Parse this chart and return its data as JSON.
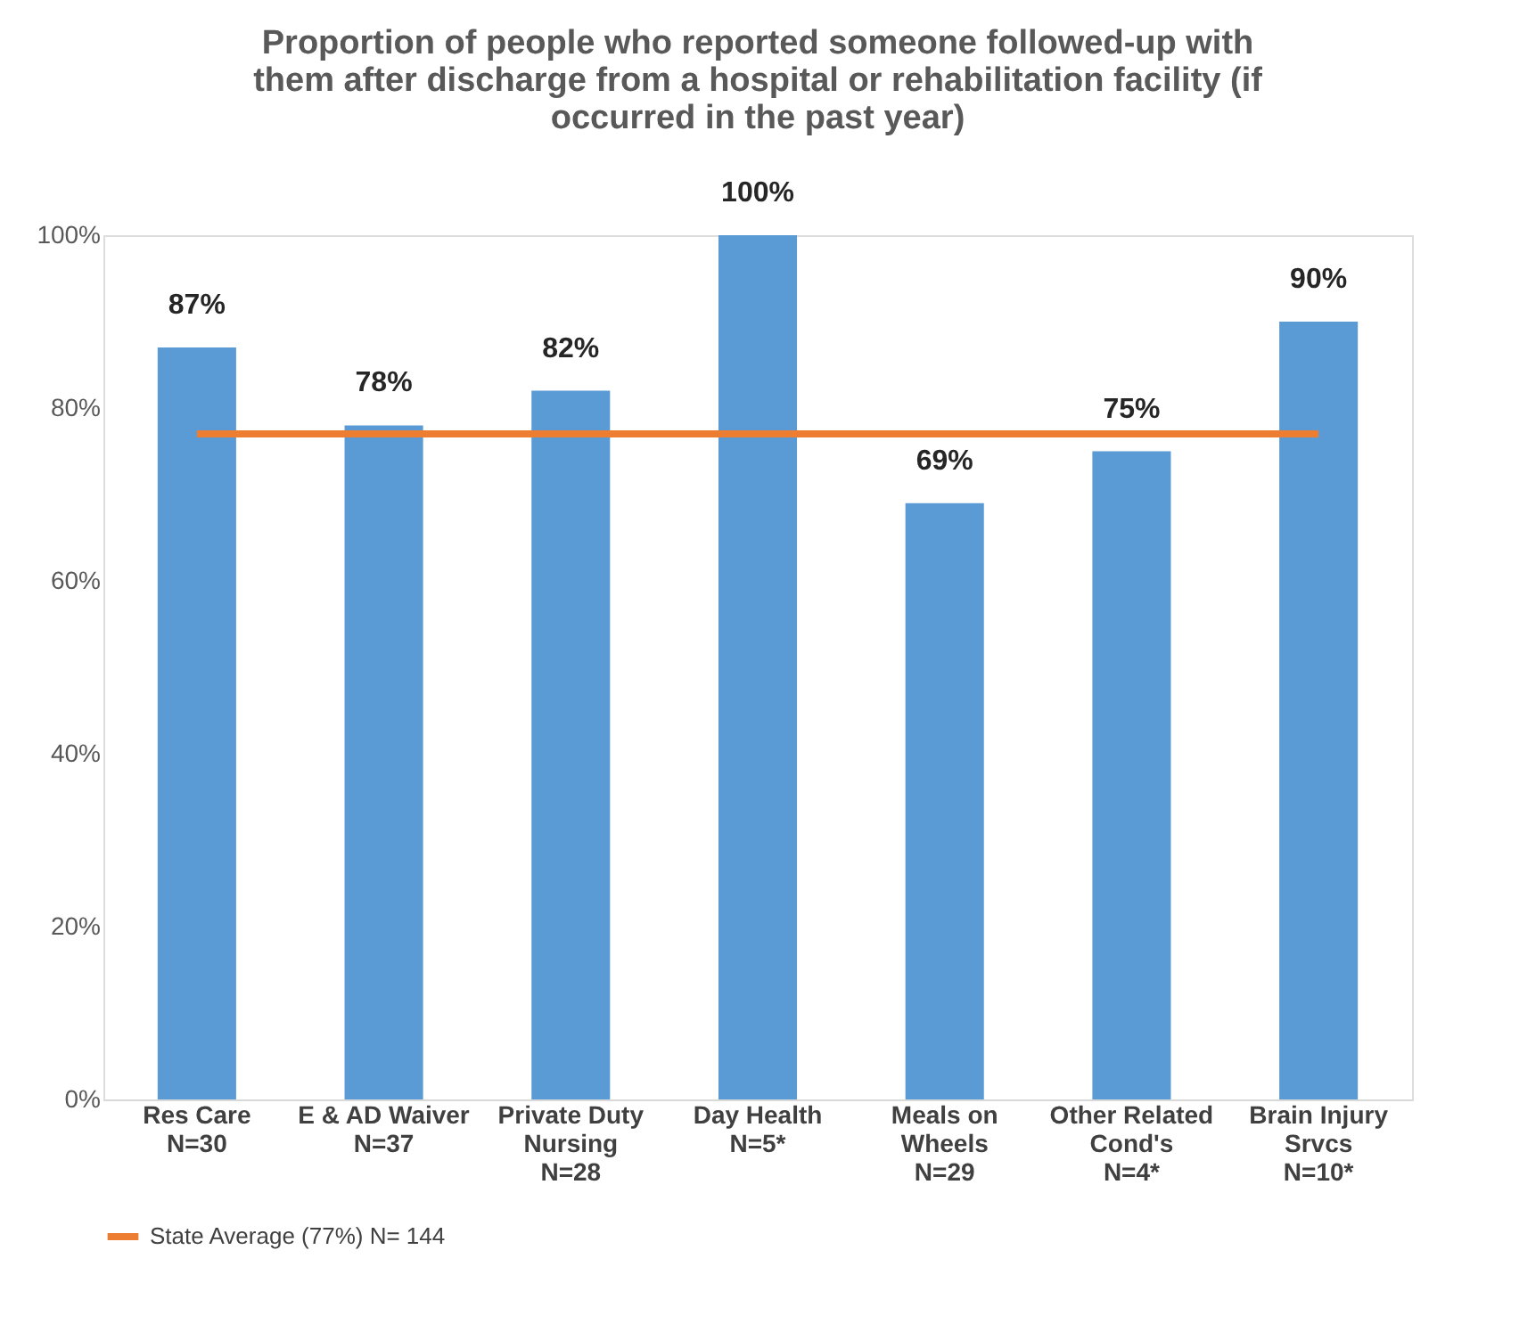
{
  "chart_data": {
    "type": "bar",
    "title": "Proportion of people who reported someone followed-up with\nthem after discharge from a hospital or rehabilitation facility (if\noccurred in the past year)",
    "categories": [
      "Res Care\nN=30",
      "E & AD Waiver\nN=37",
      "Private Duty\nNursing\nN=28",
      "Day Health\nN=5*",
      "Meals on\nWheels\nN=29",
      "Other Related\nCond's\nN=4*",
      "Brain Injury\nSrvcs\nN=10*"
    ],
    "series": [
      {
        "color": "#5b9bd5",
        "values": [
          87,
          78,
          82,
          100,
          69,
          75,
          90
        ],
        "value_labels": [
          "87%",
          "78%",
          "82%",
          "100%",
          "69%",
          "75%",
          "90%"
        ]
      },
      {
        "type": "line",
        "name": "State Average (77%) N= 144",
        "color": "#ed7d31",
        "values": [
          77,
          77,
          77,
          77,
          77,
          77,
          77
        ]
      }
    ],
    "ylim": [
      0,
      100
    ],
    "yticks": [
      {
        "value": 0,
        "label": "0%"
      },
      {
        "value": 20,
        "label": "20%"
      },
      {
        "value": 40,
        "label": "40%"
      },
      {
        "value": 60,
        "label": "60%"
      },
      {
        "value": 80,
        "label": "80%"
      },
      {
        "value": 100,
        "label": "100%"
      }
    ],
    "grid": false,
    "legend": "bottom"
  }
}
